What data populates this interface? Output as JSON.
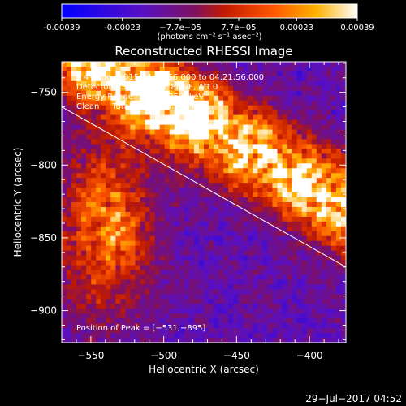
{
  "colorbar": {
    "ticks": [
      "-0.00039",
      "-0.00023",
      "−7.7e−05",
      "7.7e−05",
      "0.00023",
      "0.00039"
    ],
    "tick_values": [
      -0.00039,
      -0.00023,
      -7.7e-05,
      7.7e-05,
      0.00023,
      0.00039
    ],
    "range": [
      -0.00039,
      0.00039
    ],
    "unit_label": "(photons cm⁻² s⁻¹ asec⁻²)",
    "colors": [
      "#0000ff",
      "#4a00d0",
      "#7a20a0",
      "#b01010",
      "#ff4400",
      "#ff9900",
      "#ffffff"
    ]
  },
  "chart_data": {
    "type": "heatmap",
    "title": "Reconstructed RHESSI Image",
    "xlabel": "Heliocentric X (arcsec)",
    "ylabel": "Heliocentric Y (arcsec)",
    "xlim": [
      -570,
      -375
    ],
    "ylim": [
      -922,
      -729
    ],
    "xticks": [
      -550,
      -500,
      -450,
      -400
    ],
    "yticks": [
      -750,
      -800,
      -850,
      -900
    ],
    "xtick_labels": [
      "−550",
      "−500",
      "−450",
      "−400"
    ],
    "ytick_labels": [
      "−750",
      "−800",
      "−850",
      "−900"
    ],
    "limb_line": {
      "x": [
        -570,
        -375
      ],
      "y": [
        -760,
        -870
      ]
    },
    "peak": {
      "x": -531,
      "y": -895
    },
    "annotations": [
      "4−Aug−2015 04:11:56.000 to 04:21:56.000",
      "Detectors: 3F 5F 6F 7F 8F 9F, Att 0",
      "Energy Range: 12.0 − 25.0 keV",
      "Clean     Total counts: 3.41E+04"
    ],
    "peak_label": "Position of Peak = [−531,−895]"
  },
  "footer": {
    "timestamp": "29−Jul−2017 04:52"
  }
}
